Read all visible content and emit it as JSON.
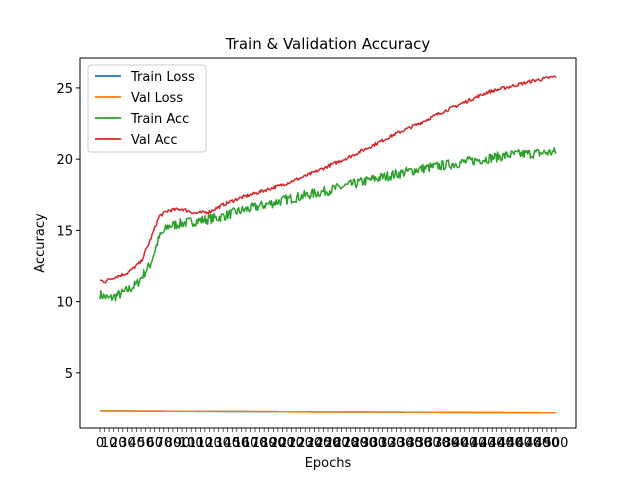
{
  "chart_data": {
    "type": "line",
    "title": "Train & Validation Accuracy",
    "xlabel": "Epochs",
    "ylabel": "Accuracy",
    "xlim": [
      0,
      500
    ],
    "ylim": [
      1.13,
      27.1
    ],
    "yticks": [
      5,
      10,
      15,
      20,
      25
    ],
    "x_tick_labels_overlapping": true,
    "grid": false,
    "legend_position": "top-left",
    "series": [
      {
        "name": "Train Loss",
        "color": "#1f77b4",
        "x": [
          0,
          250,
          500
        ],
        "values": [
          2.33,
          2.26,
          2.2
        ]
      },
      {
        "name": "Val Loss",
        "color": "#ff7f0e",
        "x": [
          0,
          250,
          500
        ],
        "values": [
          2.33,
          2.26,
          2.2
        ]
      },
      {
        "name": "Train Acc",
        "color": "#2ca02c",
        "x": [
          0,
          10,
          25,
          40,
          55,
          65,
          75,
          90,
          110,
          130,
          150,
          200,
          250,
          300,
          350,
          400,
          450,
          500
        ],
        "values": [
          10.5,
          10.2,
          10.6,
          11.2,
          12.6,
          14.5,
          15.3,
          15.5,
          15.7,
          15.9,
          16.3,
          17.1,
          17.8,
          18.6,
          19.3,
          19.8,
          20.3,
          20.5
        ]
      },
      {
        "name": "Val Acc",
        "color": "#d62728",
        "x": [
          0,
          5,
          15,
          30,
          45,
          55,
          65,
          75,
          90,
          105,
          120,
          135,
          150,
          175,
          200,
          225,
          250,
          275,
          300,
          325,
          350,
          375,
          400,
          425,
          450,
          475,
          500
        ],
        "values": [
          11.5,
          11.4,
          11.7,
          12.0,
          12.8,
          14.3,
          16.0,
          16.4,
          16.5,
          16.2,
          16.3,
          16.8,
          17.2,
          17.7,
          18.2,
          18.8,
          19.5,
          20.2,
          21.0,
          21.8,
          22.5,
          23.3,
          24.0,
          24.7,
          25.1,
          25.5,
          25.8
        ]
      }
    ]
  }
}
